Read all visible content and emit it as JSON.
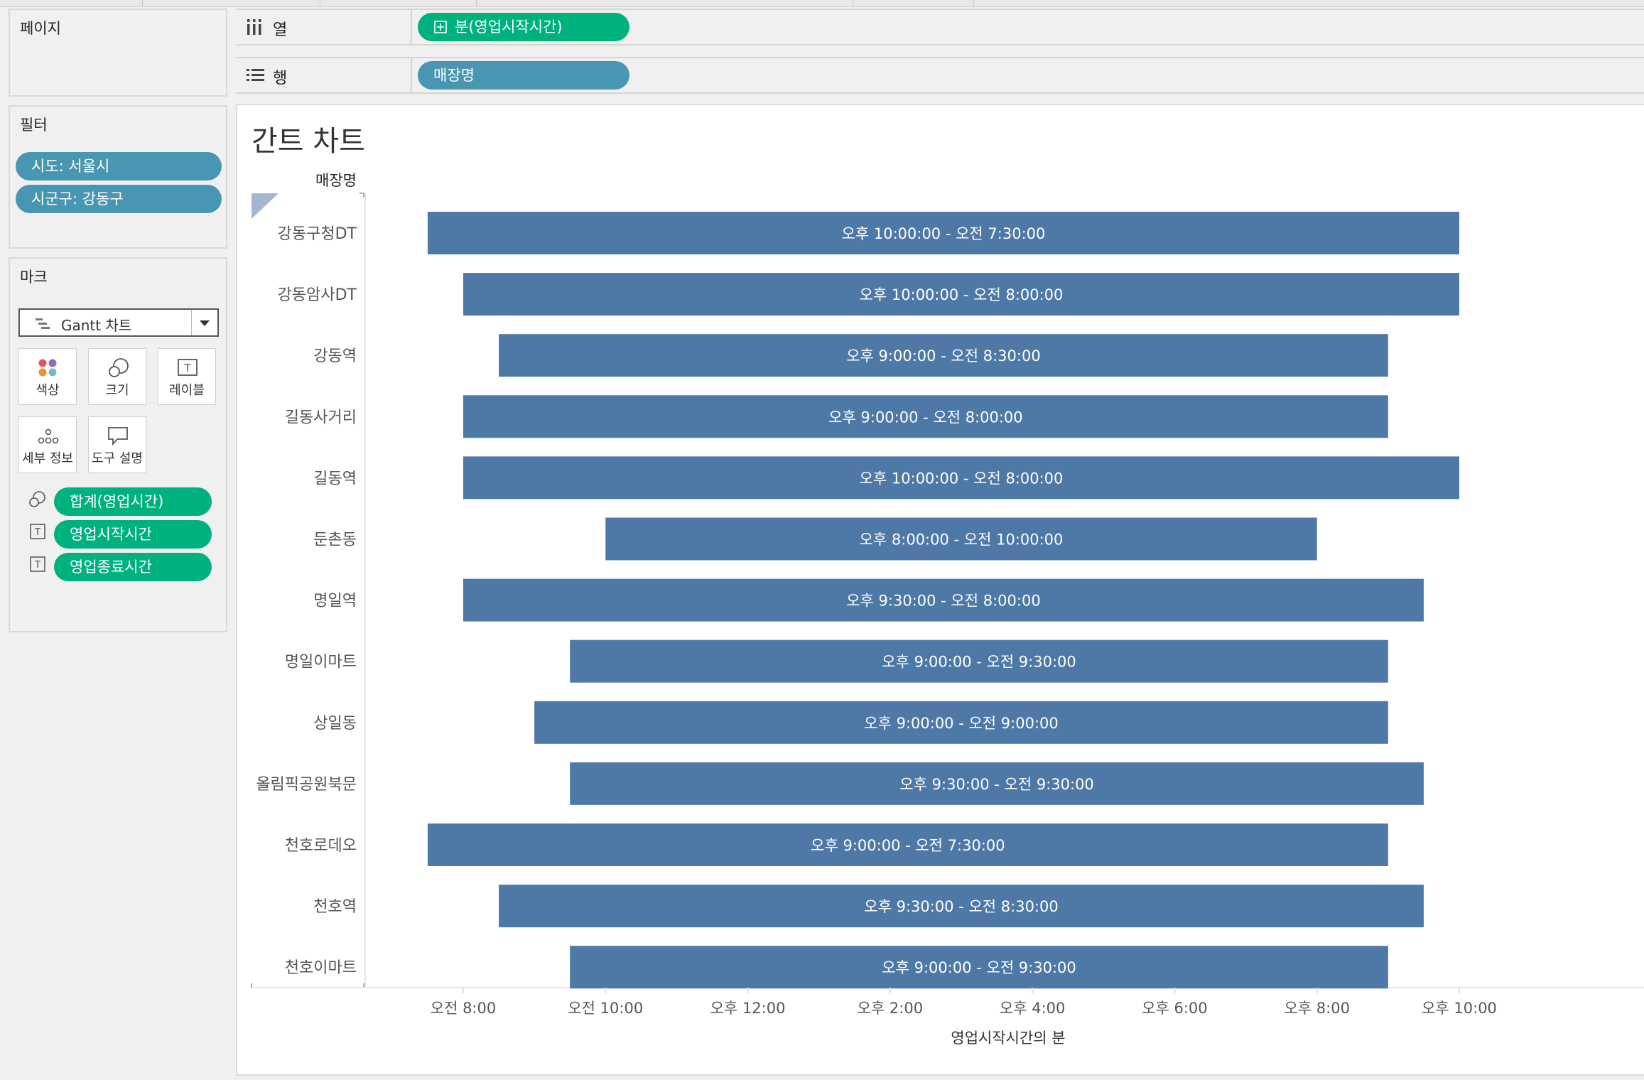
{
  "pages_panel": {
    "title": "페이지"
  },
  "filters_panel": {
    "title": "필터",
    "filters": [
      "시도: 서울시",
      "시군구: 강동구"
    ]
  },
  "marks_panel": {
    "title": "마크",
    "mark_type": "Gantt 차트",
    "buttons": {
      "color": "색상",
      "size": "크기",
      "label": "레이블",
      "detail": "세부 정보",
      "tooltip": "도구 설명"
    },
    "fields": [
      "합계(영업시간)",
      "영업시작시간",
      "영업종료시간"
    ]
  },
  "shelves": {
    "columns": {
      "label": "열",
      "pill": "분(영업시작시간)"
    },
    "rows": {
      "label": "행",
      "pill": "매장명"
    }
  },
  "sheet_title": "간트 차트",
  "colors": {
    "bar": "#4e79a7",
    "green_pill": "#00b180",
    "blue_pill": "#4996b2"
  },
  "chart_data": {
    "type": "gantt",
    "row_header": "매장명",
    "xlabel": "영업시작시간의 분",
    "x_ticks": [
      "오전 8:00",
      "오전 10:00",
      "오후 12:00",
      "오후 2:00",
      "오후 4:00",
      "오후 6:00",
      "오후 8:00",
      "오후 10:00"
    ],
    "x_tick_hours": [
      8,
      10,
      12,
      14,
      16,
      18,
      20,
      22
    ],
    "xlim_hours": [
      7,
      23.2
    ],
    "rows": [
      {
        "name": "강동구청DT",
        "start": "7:30",
        "end": "22:00",
        "label": "오후 10:00:00 - 오전 7:30:00"
      },
      {
        "name": "강동암사DT",
        "start": "8:00",
        "end": "22:00",
        "label": "오후 10:00:00 - 오전 8:00:00"
      },
      {
        "name": "강동역",
        "start": "8:30",
        "end": "21:00",
        "label": "오후 9:00:00 - 오전 8:30:00"
      },
      {
        "name": "길동사거리",
        "start": "8:00",
        "end": "21:00",
        "label": "오후 9:00:00 - 오전 8:00:00"
      },
      {
        "name": "길동역",
        "start": "8:00",
        "end": "22:00",
        "label": "오후 10:00:00 - 오전 8:00:00"
      },
      {
        "name": "둔촌동",
        "start": "10:00",
        "end": "20:00",
        "label": "오후 8:00:00 - 오전 10:00:00"
      },
      {
        "name": "명일역",
        "start": "8:00",
        "end": "21:30",
        "label": "오후 9:30:00 - 오전 8:00:00"
      },
      {
        "name": "명일이마트",
        "start": "9:30",
        "end": "21:00",
        "label": "오후 9:00:00 - 오전 9:30:00"
      },
      {
        "name": "상일동",
        "start": "9:00",
        "end": "21:00",
        "label": "오후 9:00:00 - 오전 9:00:00"
      },
      {
        "name": "올림픽공원북문",
        "start": "9:30",
        "end": "21:30",
        "label": "오후 9:30:00 - 오전 9:30:00"
      },
      {
        "name": "천호로데오",
        "start": "7:30",
        "end": "21:00",
        "label": "오후 9:00:00 - 오전 7:30:00"
      },
      {
        "name": "천호역",
        "start": "8:30",
        "end": "21:30",
        "label": "오후 9:30:00 - 오전 8:30:00"
      },
      {
        "name": "천호이마트",
        "start": "9:30",
        "end": "21:00",
        "label": "오후 9:00:00 - 오전 9:30:00"
      }
    ]
  }
}
